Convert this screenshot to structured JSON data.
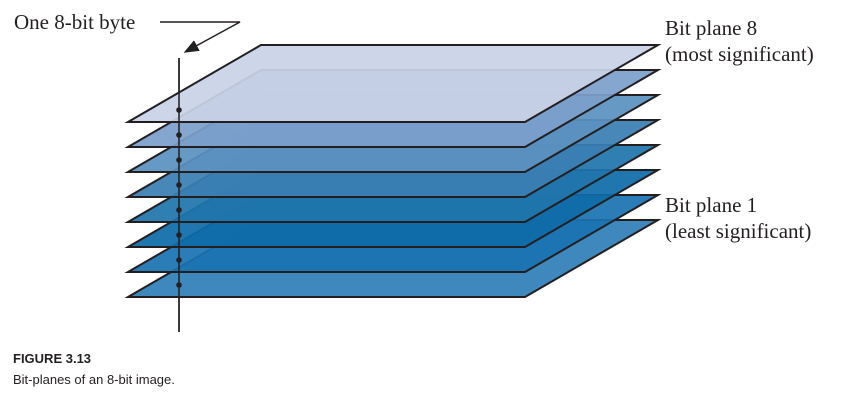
{
  "diagram": {
    "byte_label": "One 8-bit byte",
    "top_plane_label": {
      "line1": "Bit plane 8",
      "line2": "(most significant)"
    },
    "bottom_plane_label": {
      "line1": "Bit plane 1",
      "line2": "(least significant)"
    },
    "plane_count": 8,
    "plane_colors": [
      "#2f7fb8",
      "#1a73b0",
      "#0f6ca8",
      "#1f75ac",
      "#3a7fb4",
      "#5b91c1",
      "#7c9fcb",
      "#c9d2e6"
    ],
    "edge_color": "#231f20"
  },
  "caption": {
    "title": "FIGURE 3.13",
    "text": "Bit-planes of an 8-bit image."
  }
}
